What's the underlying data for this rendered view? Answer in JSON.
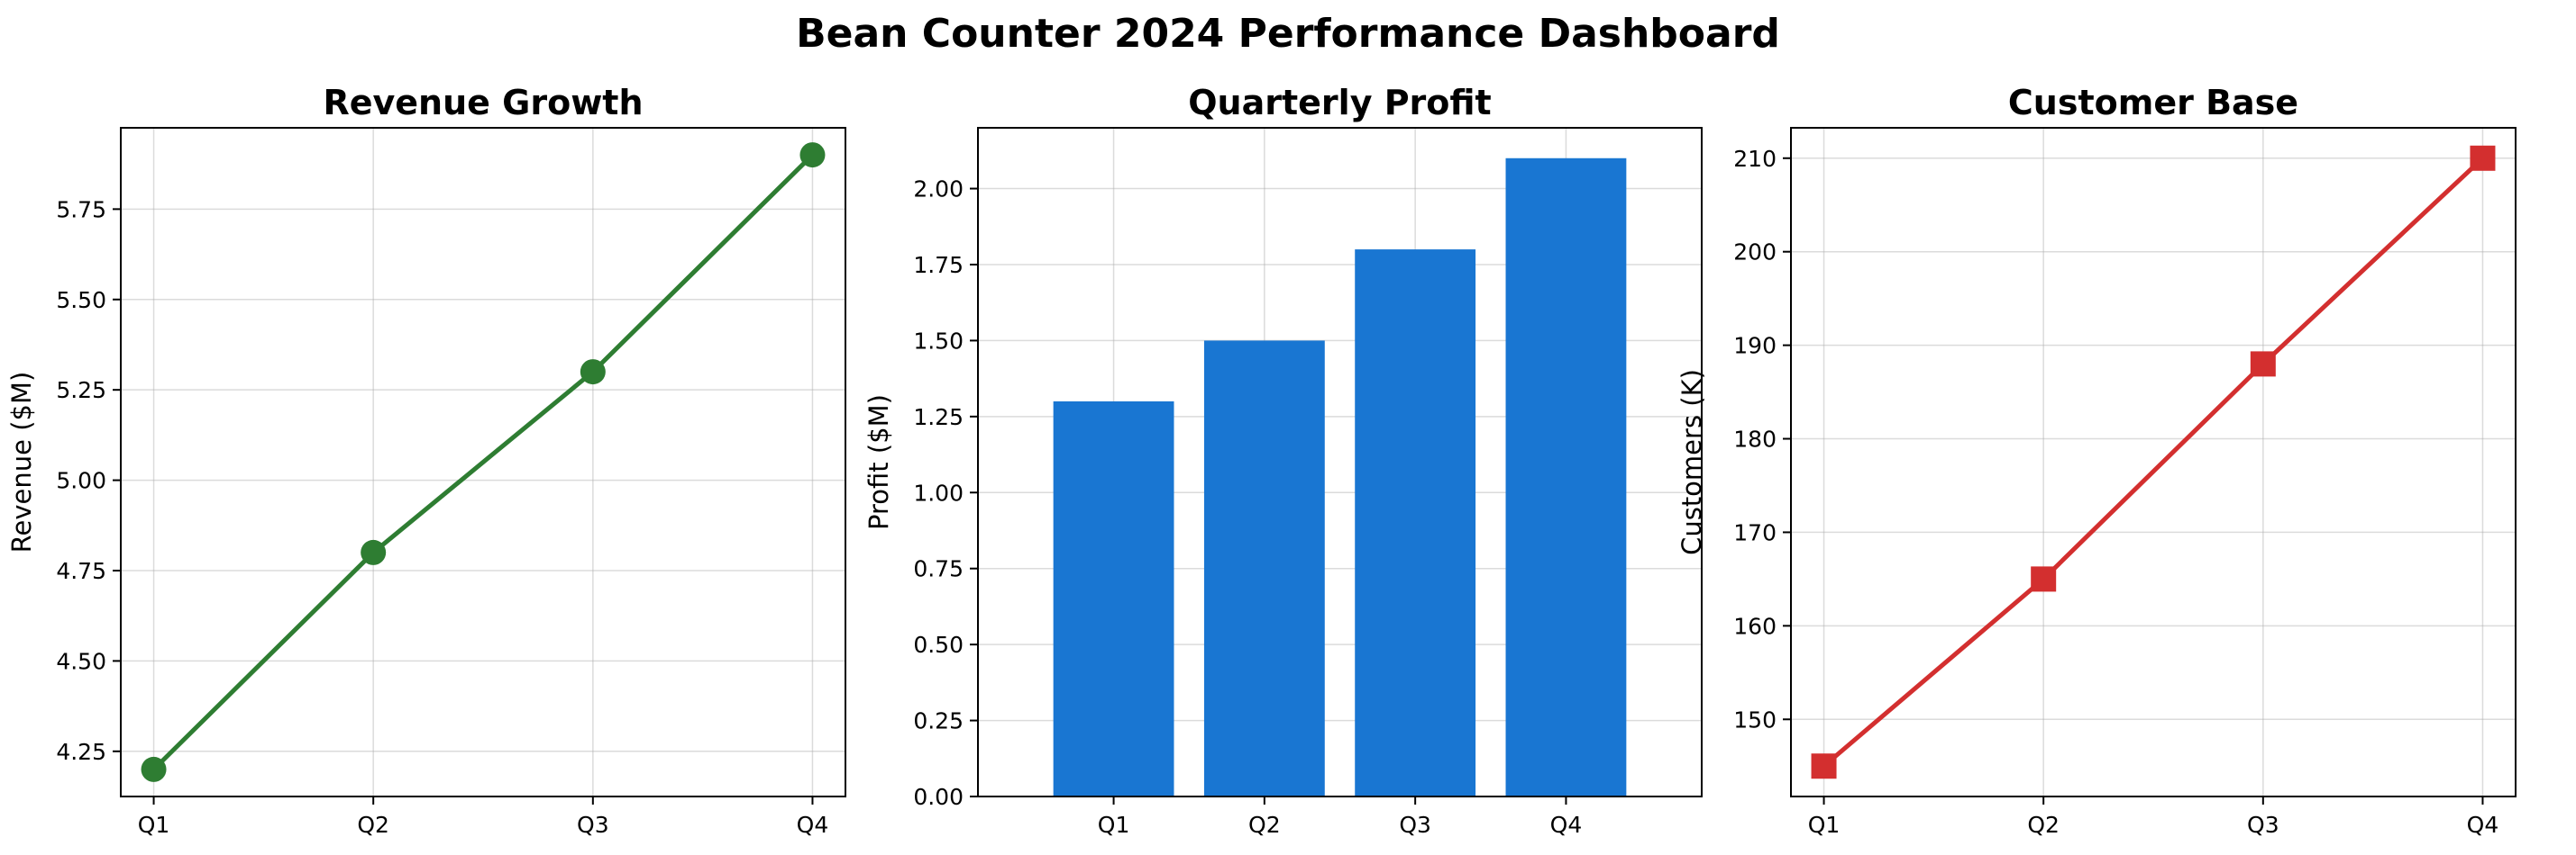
{
  "title": "Bean Counter 2024 Performance Dashboard",
  "chart_data": [
    {
      "type": "line",
      "title": "Revenue Growth",
      "xlabel": "",
      "ylabel": "Revenue ($M)",
      "categories": [
        "Q1",
        "Q2",
        "Q3",
        "Q4"
      ],
      "values": [
        4.2,
        4.8,
        5.3,
        5.9
      ],
      "ylim": [
        4.125,
        5.975
      ],
      "yticks": [
        4.25,
        4.5,
        4.75,
        5.0,
        5.25,
        5.5,
        5.75
      ],
      "ytick_labels": [
        "4.25",
        "4.50",
        "4.75",
        "5.00",
        "5.25",
        "5.50",
        "5.75"
      ],
      "color": "#2e7d32",
      "marker": "circle",
      "grid": true
    },
    {
      "type": "bar",
      "title": "Quarterly Profit",
      "xlabel": "",
      "ylabel": "Profit ($M)",
      "categories": [
        "Q1",
        "Q2",
        "Q3",
        "Q4"
      ],
      "values": [
        1.3,
        1.5,
        1.8,
        2.1
      ],
      "ylim": [
        0,
        2.2
      ],
      "yticks": [
        0,
        0.25,
        0.5,
        0.75,
        1.0,
        1.25,
        1.5,
        1.75,
        2.0
      ],
      "ytick_labels": [
        "0.00",
        "0.25",
        "0.50",
        "0.75",
        "1.00",
        "1.25",
        "1.50",
        "1.75",
        "2.00"
      ],
      "color": "#1976d2",
      "grid": true
    },
    {
      "type": "line",
      "title": "Customer Base",
      "xlabel": "",
      "ylabel": "Customers (K)",
      "categories": [
        "Q1",
        "Q2",
        "Q3",
        "Q4"
      ],
      "values": [
        145,
        165,
        188,
        210
      ],
      "ylim": [
        141.75,
        213.25
      ],
      "yticks": [
        150,
        160,
        170,
        180,
        190,
        200,
        210
      ],
      "ytick_labels": [
        "150",
        "160",
        "170",
        "180",
        "190",
        "200",
        "210"
      ],
      "color": "#d32f2f",
      "marker": "square",
      "grid": true
    }
  ]
}
